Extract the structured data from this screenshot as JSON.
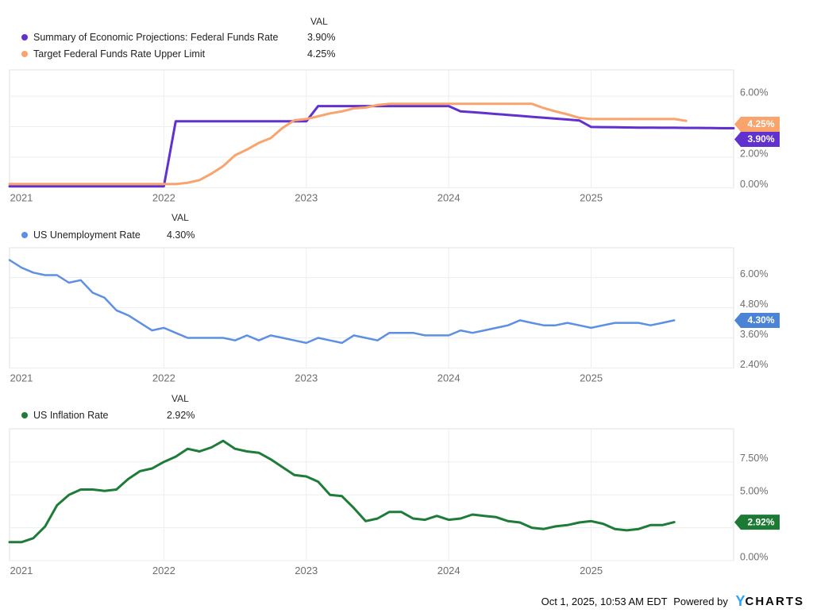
{
  "footer": {
    "timestamp": "Oct 1, 2025, 10:53 AM EDT",
    "powered_by": "Powered by",
    "logo_y": "Y",
    "logo_rest": "CHARTS"
  },
  "colors": {
    "grid": "#ededed",
    "border": "#e2e2e2",
    "axis_text": "#6d6d6d",
    "legend_text": "#222222",
    "badge_text": "#ffffff"
  },
  "chart_data": [
    {
      "id": "fed-funds",
      "type": "line",
      "title": "Summary of Economic Projections vs Target Federal Funds Rate Upper Limit",
      "val_header": "VAL",
      "x_unit": "month",
      "x_start": "2020-12",
      "x_ticks": [
        {
          "label": "2021",
          "month": 1,
          "grid": false
        },
        {
          "label": "2022",
          "month": 13,
          "grid": true
        },
        {
          "label": "2023",
          "month": 25,
          "grid": true
        },
        {
          "label": "2024",
          "month": 37,
          "grid": true
        },
        {
          "label": "2025",
          "month": 49,
          "grid": true
        }
      ],
      "y_ticks": [
        {
          "label": "6.00%",
          "value": 6
        },
        {
          "label": "2.00%",
          "value": 2
        },
        {
          "label": "0.00%",
          "value": 0
        }
      ],
      "y_gridlines": [
        6,
        4,
        2,
        0
      ],
      "ylim": [
        0,
        7.72
      ],
      "legend": [
        {
          "label": "Summary of Economic Projections: Federal Funds Rate",
          "val": "3.90%"
        },
        {
          "label": "Target Federal Funds Rate Upper Limit",
          "val": "4.25%"
        }
      ],
      "series": [
        {
          "name": "Summary of Economic Projections: Federal Funds Rate",
          "color": "#6131d0",
          "width": 3,
          "values": [
            0.1,
            0.1,
            0.1,
            0.1,
            0.1,
            0.1,
            0.1,
            0.1,
            0.1,
            0.1,
            0.1,
            0.1,
            0.1,
            0.1,
            4.35,
            4.35,
            4.35,
            4.35,
            4.35,
            4.35,
            4.35,
            4.35,
            4.35,
            4.35,
            4.35,
            4.35,
            5.35,
            5.35,
            5.35,
            5.35,
            5.35,
            5.35,
            5.35,
            5.35,
            5.35,
            5.35,
            5.35,
            5.35,
            5.0,
            4.95,
            4.89,
            4.83,
            4.77,
            4.71,
            4.65,
            4.59,
            4.53,
            4.47,
            4.41,
            3.98,
            3.97,
            3.96,
            3.95,
            3.94,
            3.94,
            3.93,
            3.93,
            3.92,
            3.92,
            3.91,
            3.9,
            3.9
          ]
        },
        {
          "name": "Target Federal Funds Rate Upper Limit",
          "color": "#f9a36d",
          "width": 3,
          "values": [
            0.25,
            0.25,
            0.25,
            0.25,
            0.25,
            0.25,
            0.25,
            0.25,
            0.25,
            0.25,
            0.25,
            0.25,
            0.25,
            0.25,
            0.25,
            0.33,
            0.5,
            0.92,
            1.42,
            2.13,
            2.5,
            2.94,
            3.25,
            3.92,
            4.42,
            4.5,
            4.68,
            4.87,
            5.0,
            5.2,
            5.25,
            5.42,
            5.5,
            5.5,
            5.5,
            5.5,
            5.5,
            5.5,
            5.5,
            5.5,
            5.5,
            5.5,
            5.5,
            5.5,
            5.5,
            5.22,
            5.0,
            4.81,
            4.58,
            4.5,
            4.5,
            4.5,
            4.5,
            4.5,
            4.5,
            4.5,
            4.5,
            4.38,
            null,
            null,
            null,
            null
          ]
        }
      ],
      "badges": [
        {
          "label": "4.25%",
          "color": "#f9a36d"
        },
        {
          "label": "3.90%",
          "color": "#6131d0"
        }
      ]
    },
    {
      "id": "unemployment",
      "type": "line",
      "title": "US Unemployment Rate",
      "val_header": "VAL",
      "x_unit": "month",
      "x_start": "2020-12",
      "x_ticks": [
        {
          "label": "2021",
          "month": 1,
          "grid": false
        },
        {
          "label": "2022",
          "month": 13,
          "grid": true
        },
        {
          "label": "2023",
          "month": 25,
          "grid": true
        },
        {
          "label": "2024",
          "month": 37,
          "grid": true
        },
        {
          "label": "2025",
          "month": 49,
          "grid": true
        }
      ],
      "y_ticks": [
        {
          "label": "6.00%",
          "value": 6
        },
        {
          "label": "4.80%",
          "value": 4.8
        },
        {
          "label": "3.60%",
          "value": 3.6
        },
        {
          "label": "2.40%",
          "value": 2.4
        }
      ],
      "y_gridlines": [
        6,
        4.8,
        3.6,
        2.4
      ],
      "ylim": [
        2.4,
        7.19
      ],
      "legend": [
        {
          "label": "US Unemployment Rate",
          "val": "4.30%"
        }
      ],
      "series": [
        {
          "name": "US Unemployment Rate",
          "color": "#5d8fe4",
          "width": 2.5,
          "values": [
            6.7,
            6.4,
            6.2,
            6.1,
            6.1,
            5.8,
            5.9,
            5.4,
            5.2,
            4.7,
            4.5,
            4.2,
            3.9,
            4.0,
            3.8,
            3.6,
            3.6,
            3.6,
            3.6,
            3.5,
            3.7,
            3.5,
            3.7,
            3.6,
            3.5,
            3.4,
            3.6,
            3.5,
            3.4,
            3.7,
            3.6,
            3.5,
            3.8,
            3.8,
            3.8,
            3.7,
            3.7,
            3.7,
            3.9,
            3.8,
            3.9,
            4.0,
            4.1,
            4.3,
            4.2,
            4.1,
            4.1,
            4.2,
            4.1,
            4.0,
            4.1,
            4.2,
            4.2,
            4.2,
            4.1,
            4.2,
            4.3,
            null,
            null,
            null,
            null,
            null
          ]
        }
      ],
      "badges": [
        {
          "label": "4.30%",
          "color": "#4b84d6"
        }
      ]
    },
    {
      "id": "inflation",
      "type": "line",
      "title": "US Inflation Rate",
      "val_header": "VAL",
      "x_unit": "month",
      "x_start": "2020-12",
      "x_ticks": [
        {
          "label": "2021",
          "month": 1,
          "grid": false
        },
        {
          "label": "2022",
          "month": 13,
          "grid": true
        },
        {
          "label": "2023",
          "month": 25,
          "grid": true
        },
        {
          "label": "2024",
          "month": 37,
          "grid": true
        },
        {
          "label": "2025",
          "month": 49,
          "grid": true
        }
      ],
      "y_ticks": [
        {
          "label": "7.50%",
          "value": 7.5
        },
        {
          "label": "5.00%",
          "value": 5
        },
        {
          "label": "0.00%",
          "value": 0
        }
      ],
      "y_gridlines": [
        7.5,
        5,
        2.5,
        0
      ],
      "ylim": [
        0,
        10.02
      ],
      "legend": [
        {
          "label": "US Inflation Rate",
          "val": "2.92%"
        }
      ],
      "series": [
        {
          "name": "US Inflation Rate",
          "color": "#1e7c39",
          "width": 3,
          "values": [
            1.4,
            1.4,
            1.7,
            2.6,
            4.2,
            5.0,
            5.4,
            5.4,
            5.3,
            5.4,
            6.2,
            6.8,
            7.0,
            7.5,
            7.9,
            8.5,
            8.3,
            8.6,
            9.1,
            8.5,
            8.3,
            8.2,
            7.7,
            7.1,
            6.5,
            6.4,
            6.0,
            5.0,
            4.9,
            4.0,
            3.0,
            3.2,
            3.7,
            3.7,
            3.2,
            3.1,
            3.4,
            3.1,
            3.2,
            3.5,
            3.4,
            3.3,
            3.0,
            2.9,
            2.5,
            2.4,
            2.6,
            2.7,
            2.9,
            3.0,
            2.8,
            2.4,
            2.3,
            2.4,
            2.7,
            2.7,
            2.92,
            null,
            null,
            null,
            null,
            null
          ]
        }
      ],
      "badges": [
        {
          "label": "2.92%",
          "color": "#1d7a35"
        }
      ]
    }
  ]
}
